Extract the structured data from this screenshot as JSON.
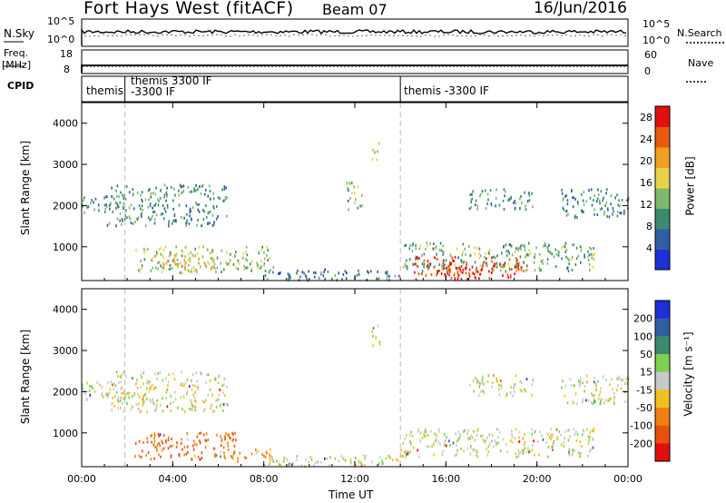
{
  "header": {
    "station": "Fort Hays West (fitACF)",
    "beam": "Beam 07",
    "date": "16/Jun/2016"
  },
  "top_panels": {
    "nsky_label": "N.Sky",
    "nsearch_label": "N.Search",
    "nsky_ticks": [
      "10^5",
      "10^0"
    ],
    "nsky_right_ticks": [
      "10^5",
      "10^0"
    ],
    "freq_label": "Freq.",
    "freq_unit": "[MHz]",
    "freq_ticks": [
      "18",
      "8"
    ],
    "nave_label": "Nave",
    "nave_ticks": [
      "60",
      "0"
    ],
    "cpid_label": "CPID",
    "cpid_segments": [
      {
        "label": "themis",
        "start": 0.0
      },
      {
        "label": "themis 3300 IF",
        "label2": "-3300 IF",
        "start": 1.9
      },
      {
        "label": "themis -3300 IF",
        "start": 14.0
      }
    ]
  },
  "chart_data": [
    {
      "type": "heatmap",
      "name": "power",
      "ylabel": "Slant Range [km]",
      "xlim": [
        0,
        24
      ],
      "ylim": [
        180,
        4500
      ],
      "yticks": [
        1000,
        2000,
        3000,
        4000
      ],
      "colorbar_label": "Power [dB]",
      "colorbar_ticks": [
        4,
        8,
        12,
        16,
        20,
        24,
        28
      ],
      "colorbar_range": [
        0,
        30
      ],
      "colors": [
        "#1e30d8",
        "#2f5fa0",
        "#3c8a6e",
        "#7fb86e",
        "#e8d24a",
        "#f0a020",
        "#e85a10",
        "#e01010"
      ],
      "blobs": [
        {
          "t0": 0.0,
          "t1": 1.9,
          "r0": 1800,
          "r1": 2250,
          "p": 10
        },
        {
          "t0": 1.1,
          "t1": 6.4,
          "r0": 1500,
          "r1": 2500,
          "p": 9
        },
        {
          "t0": 2.3,
          "t1": 8.4,
          "r0": 350,
          "r1": 1000,
          "p": 14
        },
        {
          "t0": 3.2,
          "t1": 5.8,
          "r0": 450,
          "r1": 800,
          "p": 18
        },
        {
          "t0": 8.0,
          "t1": 14.0,
          "r0": 180,
          "r1": 450,
          "p": 8
        },
        {
          "t0": 12.7,
          "t1": 13.1,
          "r0": 3100,
          "r1": 3600,
          "p": 16
        },
        {
          "t0": 11.6,
          "t1": 12.3,
          "r0": 1900,
          "r1": 2600,
          "p": 12
        },
        {
          "t0": 14.0,
          "t1": 22.5,
          "r0": 400,
          "r1": 1100,
          "p": 12
        },
        {
          "t0": 14.5,
          "t1": 19.5,
          "r0": 200,
          "r1": 750,
          "p": 26
        },
        {
          "t0": 15.5,
          "t1": 17.6,
          "r0": 200,
          "r1": 520,
          "p": 29
        },
        {
          "t0": 17.0,
          "t1": 19.8,
          "r0": 1900,
          "r1": 2400,
          "p": 10
        },
        {
          "t0": 21.0,
          "t1": 24.0,
          "r0": 1700,
          "r1": 2400,
          "p": 9
        }
      ]
    },
    {
      "type": "heatmap",
      "name": "velocity",
      "ylabel": "Slant Range [km]",
      "xlabel": "Time UT",
      "xlim": [
        0,
        24
      ],
      "xticks": [
        "00:00",
        "04:00",
        "08:00",
        "12:00",
        "16:00",
        "20:00",
        "00:00"
      ],
      "ylim": [
        180,
        4500
      ],
      "yticks": [
        1000,
        2000,
        3000,
        4000
      ],
      "colorbar_label": "Velocity [m s⁻¹]",
      "colorbar_ticks": [
        200,
        100,
        50,
        15,
        -15,
        -50,
        -100,
        -200
      ],
      "colors": [
        "#1e30d8",
        "#2f5fa0",
        "#3c8a6e",
        "#7fd050",
        "#c8c8c8",
        "#f0c020",
        "#f08010",
        "#e85010",
        "#e01010"
      ],
      "blobs": [
        {
          "t0": 0.0,
          "t1": 1.9,
          "r0": 1800,
          "r1": 2250,
          "v": 0
        },
        {
          "t0": 1.1,
          "t1": 6.4,
          "r0": 1500,
          "r1": 2500,
          "v": 0
        },
        {
          "t0": 2.3,
          "t1": 6.8,
          "r0": 350,
          "r1": 1000,
          "v": -80
        },
        {
          "t0": 6.0,
          "t1": 8.4,
          "r0": 300,
          "r1": 600,
          "v": -40
        },
        {
          "t0": 8.0,
          "t1": 14.0,
          "r0": 180,
          "r1": 450,
          "v": 0
        },
        {
          "t0": 12.7,
          "t1": 13.1,
          "r0": 3100,
          "r1": 3600,
          "v": 0
        },
        {
          "t0": 14.0,
          "t1": 22.5,
          "r0": 400,
          "r1": 1100,
          "v": 0
        },
        {
          "t0": 17.0,
          "t1": 19.8,
          "r0": 1900,
          "r1": 2400,
          "v": 0
        },
        {
          "t0": 21.0,
          "t1": 24.0,
          "r0": 1700,
          "r1": 2400,
          "v": 0
        }
      ]
    }
  ]
}
